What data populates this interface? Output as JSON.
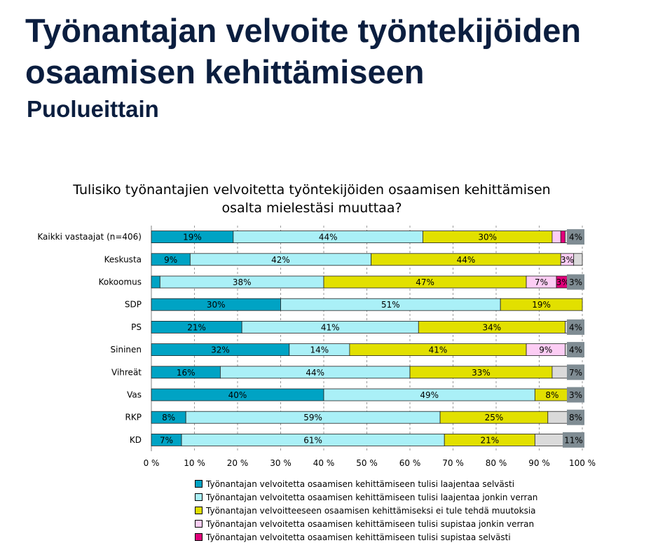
{
  "page": {
    "title": "Työnantajan velvoite työntekijöiden osaamisen kehittämiseen",
    "subtitle": "Puolueittain"
  },
  "chart_data": {
    "type": "bar",
    "orientation": "horizontal",
    "stacked": true,
    "title": "Tulisiko työnantajien velvoitetta työntekijöiden osaamisen kehittämisen osalta mielestäsi muuttaa?",
    "categories": [
      "Kaikki vastaajat (n=406)",
      "Keskusta",
      "Kokoomus",
      "SDP",
      "PS",
      "Sininen",
      "Vihreät",
      "Vas",
      "RKP",
      "KD"
    ],
    "series": [
      {
        "name": "Työnantajan velvoitetta osaamisen kehittämiseen tulisi laajentaa selvästi",
        "color": "#00a3c4",
        "values": [
          19,
          9,
          2,
          30,
          21,
          32,
          16,
          40,
          8,
          7
        ],
        "labels": [
          "19%",
          "9%",
          "",
          "30%",
          "21%",
          "32%",
          "16%",
          "40%",
          "8%",
          "7%"
        ]
      },
      {
        "name": "Työnantajan velvoitetta osaamisen kehittämiseen tulisi laajentaa jonkin verran",
        "color": "#aaf0f7",
        "values": [
          44,
          42,
          38,
          51,
          41,
          14,
          44,
          49,
          59,
          61
        ],
        "labels": [
          "44%",
          "42%",
          "38%",
          "51%",
          "41%",
          "14%",
          "44%",
          "49%",
          "59%",
          "61%"
        ]
      },
      {
        "name": "Työnantajan velvoitteeseen osaamisen kehittämiseksi ei tule tehdä muutoksia",
        "color": "#e2e000",
        "values": [
          30,
          44,
          47,
          19,
          34,
          41,
          33,
          8,
          25,
          21
        ],
        "labels": [
          "30%",
          "44%",
          "47%",
          "19%",
          "34%",
          "41%",
          "33%",
          "8%",
          "25%",
          "21%"
        ]
      },
      {
        "name": "Työnantajan velvoitetta osaamisen kehittämiseen tulisi supistaa jonkin verran",
        "color": "#fccdf4",
        "values": [
          2,
          3,
          7,
          0,
          0,
          9,
          0,
          0,
          0,
          0
        ],
        "labels": [
          "",
          "3%",
          "7%",
          "",
          "",
          "9%",
          "",
          "",
          "",
          ""
        ]
      },
      {
        "name": "Työnantajan velvoitetta osaamisen kehittämiseen tulisi supistaa selvästi",
        "color": "#e0007a",
        "values": [
          1,
          0,
          3,
          0,
          0,
          0,
          0,
          0,
          0,
          0
        ],
        "labels": [
          "",
          "",
          "3%",
          "",
          "",
          "",
          "",
          "",
          "",
          ""
        ]
      },
      {
        "name": "",
        "color": "#dadada",
        "values": [
          4,
          2,
          3,
          0,
          4,
          4,
          7,
          3,
          8,
          11
        ],
        "labels": [
          "4%",
          "",
          "3%",
          "",
          "4%",
          "4%",
          "7%",
          "3%",
          "8%",
          "11%"
        ],
        "label_badge_color": "#7f8c93"
      }
    ],
    "xaxis": {
      "min": 0,
      "max": 100,
      "ticks": [
        "0 %",
        "10 %",
        "20 %",
        "30 %",
        "40 %",
        "50 %",
        "60 %",
        "70 %",
        "80 %",
        "90 %",
        "100 %"
      ]
    },
    "grid": true,
    "legend": "bottom"
  }
}
